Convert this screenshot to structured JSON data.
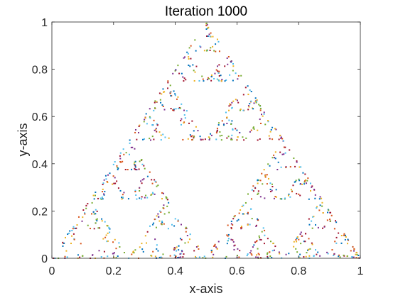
{
  "chart_data": {
    "type": "scatter",
    "title": "Iteration 1000",
    "xlabel": "x-axis",
    "ylabel": "y-axis",
    "xlim": [
      0,
      1
    ],
    "ylim": [
      0,
      1
    ],
    "xticks": [
      "0",
      "0.2",
      "0.4",
      "0.6",
      "0.8",
      "1"
    ],
    "yticks": [
      "0",
      "0.2",
      "0.4",
      "0.6",
      "0.8",
      "1"
    ],
    "grid": false,
    "point_count": 1000,
    "vertices": [
      [
        0,
        0
      ],
      [
        1,
        0
      ],
      [
        0.5,
        1
      ]
    ],
    "point_colors": [
      "#0072BD",
      "#D95319",
      "#EDB120",
      "#7E2F8E",
      "#77AC30",
      "#4DBEEE",
      "#A2142F"
    ],
    "axis_color": "#262626"
  }
}
